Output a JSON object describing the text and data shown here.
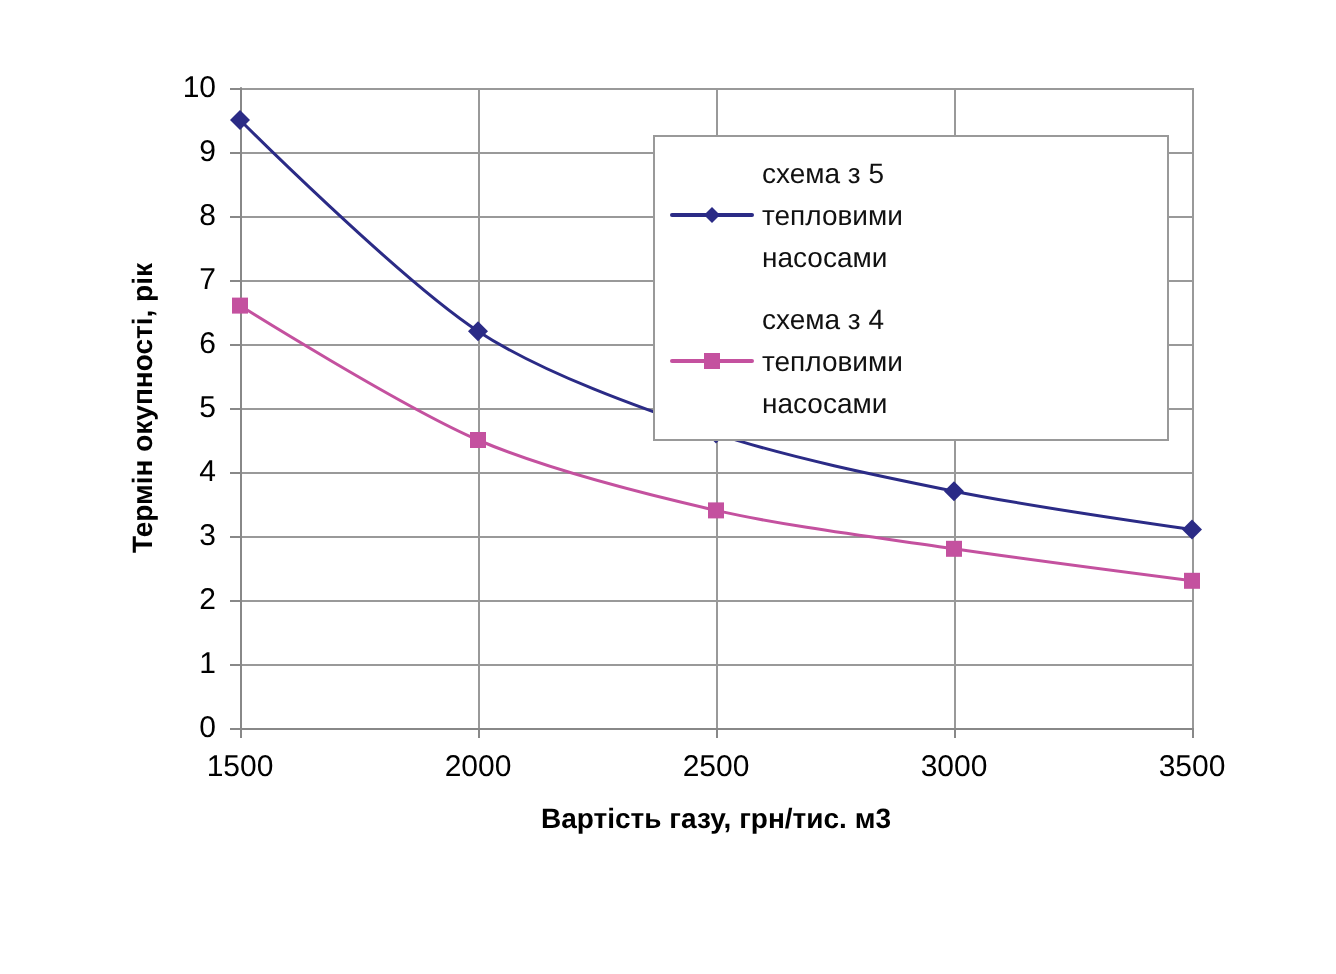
{
  "chart_data": {
    "type": "line",
    "xlabel": "Вартість газу, грн/тис. м3",
    "ylabel": "Термін окупності, рік",
    "x": [
      1500,
      2000,
      2500,
      3000,
      3500
    ],
    "series": [
      {
        "name": "схема з 5 тепловими насосами",
        "color": "#2b2b86",
        "marker": "diamond",
        "values": [
          9.5,
          6.2,
          4.6,
          3.7,
          3.1
        ]
      },
      {
        "name": "схема з 4 тепловими насосами",
        "color": "#c4519f",
        "marker": "square",
        "values": [
          6.6,
          4.5,
          3.4,
          2.8,
          2.3
        ]
      }
    ],
    "xlim": [
      1500,
      3500
    ],
    "xticks": [
      1500,
      2000,
      2500,
      3000,
      3500
    ],
    "ylim": [
      0,
      10
    ],
    "yticks": [
      0,
      1,
      2,
      3,
      4,
      5,
      6,
      7,
      8,
      9,
      10
    ],
    "grid": true,
    "legend": "top right",
    "line_style": "solid"
  }
}
